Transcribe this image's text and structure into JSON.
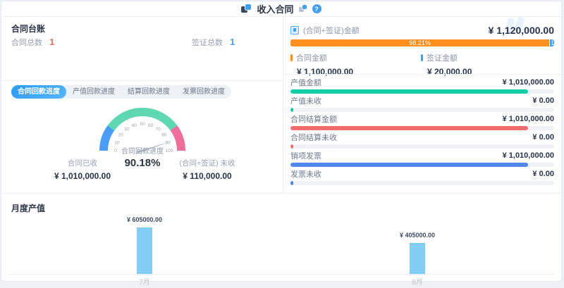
{
  "colors": {
    "accent_blue": "#409eff",
    "red": "#f56c6c",
    "orange": "#ff8f1f",
    "teal": "#13cfa9",
    "gauge_blue": "#4a9ef9",
    "gauge_teal": "#5fd7b1",
    "gauge_pink": "#ef6e9b",
    "list_blue": "#4f87ee",
    "bar_sky": "#82cdf4",
    "track_gray": "#eef1f6"
  },
  "header": {
    "title": "收入合同",
    "help_label": "?"
  },
  "ledger": {
    "title": "合同台账",
    "stats": [
      {
        "label": "合同总数",
        "value": "1",
        "color": "#f56c6c"
      },
      {
        "label": "签证总数",
        "value": "1",
        "color": "#409eff"
      }
    ]
  },
  "tabs": [
    {
      "label": "合同回款进度",
      "active": true
    },
    {
      "label": "产值回款进度",
      "active": false
    },
    {
      "label": "结算回款进度",
      "active": false
    },
    {
      "label": "发票回款进度",
      "active": false
    }
  ],
  "gauge": {
    "label": "合同回款进度",
    "value": 90.18,
    "value_display": "90.18%",
    "min": 0,
    "max": 100,
    "ticks": [
      0,
      10,
      20,
      30,
      40,
      50,
      60,
      70,
      80,
      90,
      100
    ],
    "segments": [
      {
        "from": 0,
        "to": 20,
        "color": "#4a9ef9"
      },
      {
        "from": 20,
        "to": 80,
        "color": "#5fd7b1"
      },
      {
        "from": 80,
        "to": 100,
        "color": "#ef6e9b"
      }
    ],
    "stats": [
      {
        "label": "合同已收",
        "value": "¥ 1,010,000.00"
      },
      {
        "label": "(合同+签证) 未收",
        "value": "¥ 110,000.00"
      }
    ]
  },
  "amount_panel": {
    "title": "(合同+签证)金额",
    "total": "¥ 1,120,000.00",
    "stacked_bar": {
      "segments": [
        {
          "name": "合同金额",
          "percent": 98.21,
          "label": "98.21%",
          "color": "#ff8f1f"
        },
        {
          "name": "签证金额",
          "percent": 1.79,
          "label": "1.79%",
          "color": "#409eff"
        }
      ]
    },
    "legends": [
      {
        "label": "合同金额",
        "value": "¥ 1,100,000.00",
        "color": "#ff8f1f"
      },
      {
        "label": "签证金额",
        "value": "¥ 20,000.00",
        "color": "#409eff"
      }
    ],
    "rows": [
      {
        "label": "产值金额",
        "value": "¥ 1,010,000.00",
        "percent": 90.18,
        "color": "#13cfa9"
      },
      {
        "label": "产值未收",
        "value": "¥ 0.00",
        "percent": 1,
        "color": "#13cfa9"
      },
      {
        "label": "合同结算金额",
        "value": "¥ 1,010,000.00",
        "percent": 90.18,
        "color": "#f56c6c"
      },
      {
        "label": "合同结算未收",
        "value": "¥ 0.00",
        "percent": 1,
        "color": "#f56c6c"
      },
      {
        "label": "销项发票",
        "value": "¥ 1,010,000.00",
        "percent": 90.18,
        "color": "#4f87ee"
      },
      {
        "label": "发票未收",
        "value": "¥ 0.00",
        "percent": 1,
        "color": "#4f87ee"
      }
    ]
  },
  "monthly": {
    "title": "月度产值",
    "bars": [
      {
        "month": "7月",
        "value": 605000,
        "value_label": "¥ 605000.00"
      },
      {
        "month": "8月",
        "value": 405000,
        "value_label": "¥ 405000.00"
      }
    ]
  },
  "chart_data": [
    {
      "type": "gauge",
      "title": "合同回款进度",
      "value": 90.18,
      "unit": "%",
      "min": 0,
      "max": 100,
      "ticks": [
        0,
        10,
        20,
        30,
        40,
        50,
        60,
        70,
        80,
        90,
        100
      ],
      "segments": [
        {
          "range": [
            0,
            20
          ],
          "color": "#4a9ef9"
        },
        {
          "range": [
            20,
            80
          ],
          "color": "#5fd7b1"
        },
        {
          "range": [
            80,
            100
          ],
          "color": "#ef6e9b"
        }
      ],
      "annotations": [
        "合同已收 ¥ 1,010,000.00",
        "(合同+签证) 未收 ¥ 110,000.00"
      ]
    },
    {
      "type": "bar",
      "subtype": "stacked-progress",
      "title": "(合同+签证)金额",
      "total": 1120000,
      "series": [
        {
          "name": "合同金额",
          "value": 1100000,
          "percent": 98.21
        },
        {
          "name": "签证金额",
          "value": 20000,
          "percent": 1.79
        }
      ]
    },
    {
      "type": "bar",
      "subtype": "progress-list",
      "categories": [
        "产值金额",
        "产值未收",
        "合同结算金额",
        "合同结算未收",
        "销项发票",
        "发票未收"
      ],
      "values": [
        1010000,
        0,
        1010000,
        0,
        1010000,
        0
      ],
      "max": 1120000
    },
    {
      "type": "bar",
      "title": "月度产值",
      "categories": [
        "7月",
        "8月"
      ],
      "values": [
        605000,
        405000
      ],
      "xlabel": "",
      "ylabel": "",
      "ylim": [
        0,
        605000
      ],
      "grid": false,
      "legend_position": "none"
    }
  ]
}
